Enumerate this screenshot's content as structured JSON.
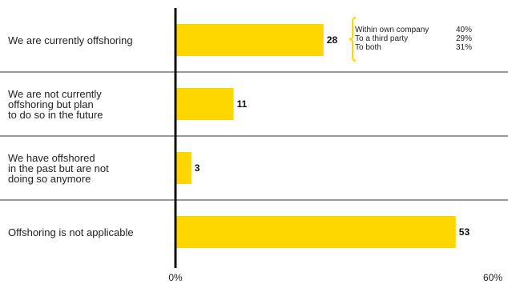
{
  "chart_data": {
    "type": "bar",
    "orientation": "horizontal",
    "categories": [
      "We are currently offshoring",
      "We are not currently offshoring but plan to do so in the future",
      "We have offshored in the past but are not doing so anymore",
      "Offshoring is not applicable"
    ],
    "category_lines": [
      [
        "We are currently offshoring"
      ],
      [
        "We are not currently",
        "offshoring but plan",
        "to do so in the future"
      ],
      [
        "We have offshored",
        "in the past but are not",
        "doing so anymore"
      ],
      [
        "Offshoring is not applicable"
      ]
    ],
    "values": [
      28,
      11,
      3,
      53
    ],
    "data_labels": [
      "28",
      "11",
      "3",
      "53"
    ],
    "xlim": [
      0,
      60
    ],
    "x_tick_labels": [
      "0%",
      "60%"
    ],
    "bar_color": "#FFD700",
    "annotation": {
      "target_category": "We are currently offshoring",
      "items": [
        {
          "label": "Within own company",
          "value": "40%"
        },
        {
          "label": "To a third party",
          "value": "29%"
        },
        {
          "label": "To both",
          "value": "31%"
        }
      ]
    }
  }
}
